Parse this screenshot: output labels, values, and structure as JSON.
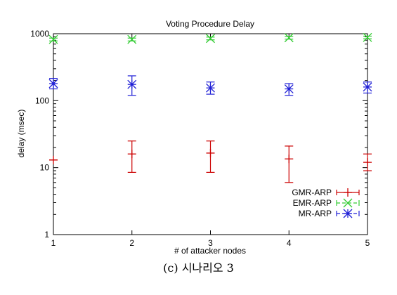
{
  "chart_data": {
    "type": "scatter",
    "title": "Voting Procedure Delay",
    "xlabel": "# of attacker nodes",
    "ylabel": "delay (msec)",
    "x_ticks": [
      "1",
      "2",
      "3",
      "4",
      "5"
    ],
    "xlim": [
      1,
      5
    ],
    "y_scale": "log",
    "ylim": [
      1,
      1000
    ],
    "y_ticks": [
      "1",
      "10",
      "100",
      "1000"
    ],
    "grid": false,
    "legend_position": "bottom-right",
    "series": [
      {
        "name": "GMR-ARP",
        "color": "#cc0000",
        "marker": "plus",
        "x": [
          1,
          2,
          3,
          4,
          5
        ],
        "y": [
          13,
          16,
          16.5,
          13.5,
          12
        ],
        "y_low": [
          13,
          8.5,
          8.5,
          6,
          9
        ],
        "y_high": [
          13,
          25,
          25,
          21,
          16
        ]
      },
      {
        "name": "EMR-ARP",
        "color": "#33cc33",
        "marker": "cross",
        "x": [
          1,
          2,
          3,
          4,
          5
        ],
        "y": [
          820,
          820,
          850,
          870,
          880
        ],
        "y_low": [
          780,
          780,
          810,
          830,
          840
        ],
        "y_high": [
          860,
          860,
          890,
          910,
          920
        ]
      },
      {
        "name": "MR-ARP",
        "color": "#1f1fd6",
        "marker": "star",
        "x": [
          1,
          2,
          3,
          4,
          5
        ],
        "y": [
          180,
          175,
          155,
          150,
          160
        ],
        "y_low": [
          150,
          120,
          125,
          120,
          130
        ],
        "y_high": [
          215,
          235,
          190,
          180,
          190
        ]
      }
    ]
  },
  "caption": "(c) 시나리오 3"
}
